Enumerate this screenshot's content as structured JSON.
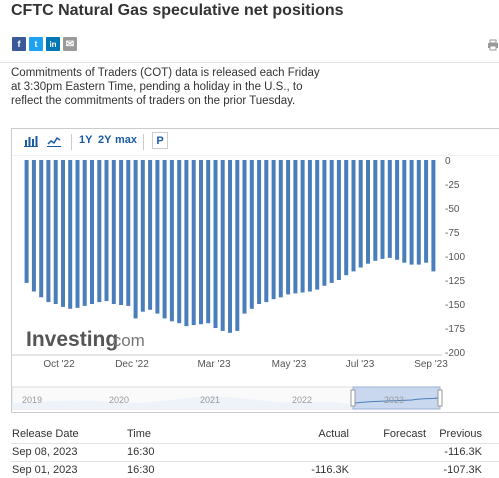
{
  "page": {
    "title": "CFTC Natural Gas speculative net positions",
    "description": "Commitments of Traders (COT) data is released each Friday at 3:30pm Eastern Time, pending a holiday in the U.S., to reflect the commitments of traders on the prior Tuesday."
  },
  "share": {
    "facebook_glyph": "f",
    "twitter_glyph": "t",
    "linkedin_glyph": "in",
    "email_glyph": "✉",
    "icons": [
      "facebook-icon",
      "twitter-icon",
      "linkedin-icon",
      "email-icon",
      "print-icon"
    ],
    "colors": {
      "facebook": "#3b5998",
      "twitter": "#1da1f2",
      "linkedin": "#0077b5",
      "email": "#9a9a9a"
    }
  },
  "toolbar": {
    "bar_chart_icon": "bar-chart-icon",
    "line_chart_icon": "line-chart-icon",
    "range_1y": "1Y",
    "range_2y": "2Y",
    "range_max": "max",
    "p_button": "P"
  },
  "chart_data": {
    "type": "bar",
    "watermark": "Investing",
    "watermark_suffix": ".com",
    "x_tick_labels": [
      "Oct '22",
      "Dec '22",
      "Mar '23",
      "May '23",
      "Jul '23",
      "Sep '23"
    ],
    "y_tick_labels": [
      "0",
      "-25",
      "-50",
      "-75",
      "-100",
      "-125",
      "-150",
      "-175",
      "-200"
    ],
    "ylim": [
      -200,
      0
    ],
    "axis_side": "right",
    "bar_color": "#4a7ebb",
    "values": [
      -128,
      -137,
      -143,
      -148,
      -150,
      -153,
      -155,
      -154,
      -152,
      -150,
      -148,
      -147,
      -150,
      -151,
      -152,
      -165,
      -158,
      -156,
      -160,
      -165,
      -168,
      -170,
      -173,
      -172,
      -171,
      -170,
      -175,
      -178,
      -180,
      -178,
      -160,
      -155,
      -150,
      -148,
      -145,
      -143,
      -140,
      -139,
      -138,
      -137,
      -135,
      -131,
      -128,
      -125,
      -120,
      -116,
      -112,
      -108,
      -105,
      -103,
      -102,
      -104,
      -107,
      -109,
      -109,
      -107,
      -116
    ],
    "navigator": {
      "year_labels": [
        "2019",
        "2020",
        "2021",
        "2022",
        "2023"
      ]
    }
  },
  "table": {
    "headers": {
      "release_date": "Release Date",
      "time": "Time",
      "actual": "Actual",
      "forecast": "Forecast",
      "previous": "Previous"
    },
    "rows": [
      {
        "release_date": "Sep 08, 2023",
        "time": "16:30",
        "actual": "",
        "forecast": "",
        "previous": "-116.3K"
      },
      {
        "release_date": "Sep 01, 2023",
        "time": "16:30",
        "actual": "-116.3K",
        "forecast": "",
        "previous": "-107.3K"
      }
    ]
  }
}
